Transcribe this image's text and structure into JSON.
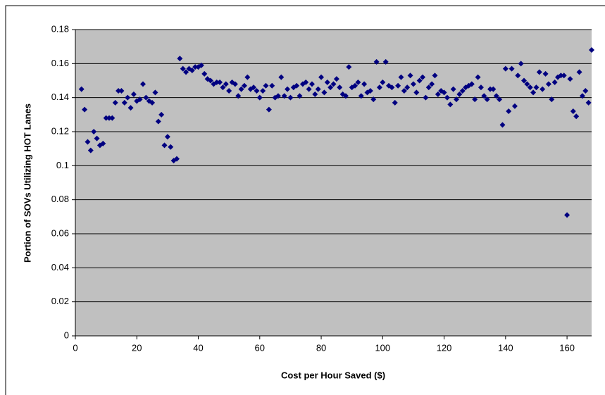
{
  "chart_data": {
    "type": "scatter",
    "x_label": "Cost per Hour Saved ($)",
    "y_label": "Portion of SOVs Utilizing HOT Lanes",
    "xlim": [
      0,
      168
    ],
    "xticks": [
      0,
      20,
      40,
      60,
      80,
      100,
      120,
      140,
      160
    ],
    "ylim": [
      0,
      0.18
    ],
    "yticks": [
      0,
      0.02,
      0.04,
      0.06,
      0.08,
      0.1,
      0.12,
      0.14,
      0.16,
      0.18
    ],
    "grid": true,
    "plot_background": "#c0c0c0",
    "x": [
      2,
      3,
      4,
      5,
      6,
      7,
      8,
      9,
      10,
      11,
      12,
      13,
      14,
      15,
      16,
      17,
      18,
      19,
      20,
      21,
      22,
      23,
      24,
      25,
      26,
      27,
      28,
      29,
      30,
      31,
      32,
      33,
      34,
      35,
      36,
      37,
      38,
      39,
      40,
      41,
      42,
      43,
      44,
      45,
      46,
      47,
      48,
      49,
      50,
      51,
      52,
      53,
      54,
      55,
      56,
      57,
      58,
      59,
      60,
      61,
      62,
      63,
      64,
      65,
      66,
      67,
      68,
      69,
      70,
      71,
      72,
      73,
      74,
      75,
      76,
      77,
      78,
      79,
      80,
      81,
      82,
      83,
      84,
      85,
      86,
      87,
      88,
      89,
      90,
      91,
      92,
      93,
      94,
      95,
      96,
      97,
      98,
      99,
      100,
      101,
      102,
      103,
      104,
      105,
      106,
      107,
      108,
      109,
      110,
      111,
      112,
      113,
      114,
      115,
      116,
      117,
      118,
      119,
      120,
      121,
      122,
      123,
      124,
      125,
      126,
      127,
      128,
      129,
      130,
      131,
      132,
      133,
      134,
      135,
      136,
      137,
      138,
      139,
      140,
      141,
      142,
      143,
      144,
      145,
      146,
      147,
      148,
      149,
      150,
      151,
      152,
      153,
      154,
      155,
      156,
      157,
      158,
      159,
      160,
      161,
      162,
      163,
      164,
      165,
      166,
      167,
      168
    ],
    "series": [
      {
        "color": "#000080",
        "values": [
          0.145,
          0.133,
          0.114,
          0.109,
          0.12,
          0.116,
          0.112,
          0.113,
          0.128,
          0.128,
          0.128,
          0.137,
          0.144,
          0.144,
          0.137,
          0.14,
          0.134,
          0.142,
          0.138,
          0.139,
          0.148,
          0.14,
          0.138,
          0.137,
          0.143,
          0.126,
          0.13,
          0.112,
          0.117,
          0.111,
          0.103,
          0.104,
          0.163,
          0.157,
          0.155,
          0.157,
          0.156,
          0.158,
          0.158,
          0.159,
          0.154,
          0.151,
          0.15,
          0.148,
          0.149,
          0.149,
          0.146,
          0.148,
          0.144,
          0.149,
          0.148,
          0.141,
          0.145,
          0.147,
          0.152,
          0.145,
          0.146,
          0.144,
          0.14,
          0.144,
          0.147,
          0.133,
          0.147,
          0.14,
          0.141,
          0.152,
          0.141,
          0.145,
          0.14,
          0.146,
          0.147,
          0.141,
          0.148,
          0.149,
          0.145,
          0.148,
          0.142,
          0.145,
          0.152,
          0.143,
          0.149,
          0.146,
          0.148,
          0.151,
          0.146,
          0.142,
          0.141,
          0.158,
          0.146,
          0.147,
          0.149,
          0.141,
          0.148,
          0.143,
          0.144,
          0.139,
          0.161,
          0.146,
          0.149,
          0.161,
          0.147,
          0.146,
          0.137,
          0.147,
          0.152,
          0.144,
          0.146,
          0.153,
          0.148,
          0.143,
          0.15,
          0.152,
          0.14,
          0.146,
          0.148,
          0.153,
          0.142,
          0.144,
          0.143,
          0.14,
          0.136,
          0.145,
          0.139,
          0.142,
          0.144,
          0.146,
          0.147,
          0.148,
          0.139,
          0.152,
          0.146,
          0.141,
          0.139,
          0.145,
          0.145,
          0.141,
          0.139,
          0.124,
          0.157,
          0.132,
          0.157,
          0.135,
          0.153,
          0.16,
          0.15,
          0.148,
          0.146,
          0.143,
          0.146,
          0.155,
          0.145,
          0.154,
          0.148,
          0.139,
          0.149,
          0.152,
          0.153,
          0.153,
          0.071,
          0.151,
          0.132,
          0.129,
          0.155,
          0.141,
          0.144,
          0.137,
          0.168
        ]
      }
    ]
  }
}
